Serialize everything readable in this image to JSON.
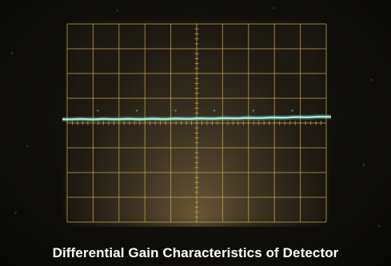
{
  "caption": "Differential Gain Characteristics of Detector",
  "colors": {
    "graticule": "#c8a24a",
    "trace": "#9ff2dc",
    "background": "#0c0b08"
  }
}
